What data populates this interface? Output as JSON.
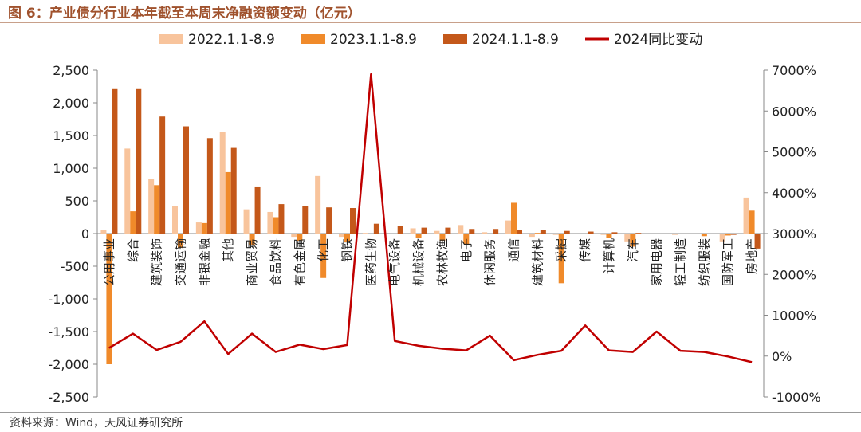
{
  "header": {
    "title": "图 6：产业债分行业本年截至本周末净融资额变动（亿元）"
  },
  "footer": {
    "source": "资料来源：Wind，天风证券研究所"
  },
  "chart_data": {
    "type": "bar",
    "title": "图 6：产业债分行业本年截至本周末净融资额变动（亿元）",
    "categories": [
      "公用事业",
      "综合",
      "建筑装饰",
      "交通运输",
      "非银金融",
      "其他",
      "商业贸易",
      "食品饮料",
      "有色金属",
      "化工",
      "钢铁",
      "医药生物",
      "电气设备",
      "机械设备",
      "农林牧渔",
      "电子",
      "休闲服务",
      "通信",
      "建筑材料",
      "采掘",
      "传媒",
      "计算机",
      "汽车",
      "家用电器",
      "轻工制造",
      "纺织服装",
      "国防军工",
      "房地产"
    ],
    "series": [
      {
        "name": "2022.1.1-8.9",
        "color": "#f8c49c",
        "axis": "left",
        "values": [
          50,
          1300,
          830,
          420,
          170,
          1560,
          370,
          330,
          -50,
          880,
          -50,
          10,
          -10,
          80,
          40,
          130,
          20,
          200,
          -50,
          -20,
          -10,
          -20,
          -120,
          0,
          -20,
          -10,
          -120,
          550
        ]
      },
      {
        "name": "2023.1.1-8.9",
        "color": "#f08a2a",
        "axis": "left",
        "values": [
          -2000,
          340,
          740,
          -220,
          160,
          940,
          -180,
          250,
          -110,
          -680,
          -130,
          0,
          0,
          -70,
          -110,
          -160,
          0,
          470,
          10,
          -760,
          0,
          -70,
          -200,
          0,
          0,
          -40,
          -30,
          350
        ]
      },
      {
        "name": "2024.1.1-8.9",
        "color": "#c4581a",
        "axis": "left",
        "values": [
          2210,
          2210,
          1790,
          1640,
          1460,
          1310,
          720,
          450,
          420,
          400,
          390,
          150,
          120,
          90,
          90,
          70,
          70,
          60,
          50,
          40,
          30,
          20,
          10,
          0,
          0,
          0,
          -20,
          -230
        ]
      },
      {
        "name": "2024同比变动",
        "color": "#c00000",
        "axis": "right",
        "type": "line",
        "values": [
          200,
          550,
          150,
          350,
          850,
          50,
          550,
          100,
          280,
          170,
          270,
          6900,
          370,
          250,
          180,
          140,
          500,
          -100,
          30,
          130,
          750,
          140,
          100,
          600,
          130,
          100,
          -10,
          -150
        ]
      }
    ],
    "ylim": [
      -2500,
      2500
    ],
    "yticks": [
      -2500,
      -2000,
      -1500,
      -1000,
      -500,
      0,
      500,
      1000,
      1500,
      2000,
      2500
    ],
    "ytick_labels": [
      "-2,500",
      "-2,000",
      "-1,500",
      "-1,000",
      "-500",
      "0",
      "500",
      "1,000",
      "1,500",
      "2,000",
      "2,500"
    ],
    "y2lim": [
      -1000,
      7000
    ],
    "y2ticks": [
      -1000,
      0,
      1000,
      2000,
      3000,
      4000,
      5000,
      6000,
      7000
    ],
    "y2tick_labels": [
      "-1000%",
      "0%",
      "1000%",
      "2000%",
      "3000%",
      "4000%",
      "5000%",
      "6000%",
      "7000%"
    ],
    "legend": "top",
    "grid": false
  }
}
